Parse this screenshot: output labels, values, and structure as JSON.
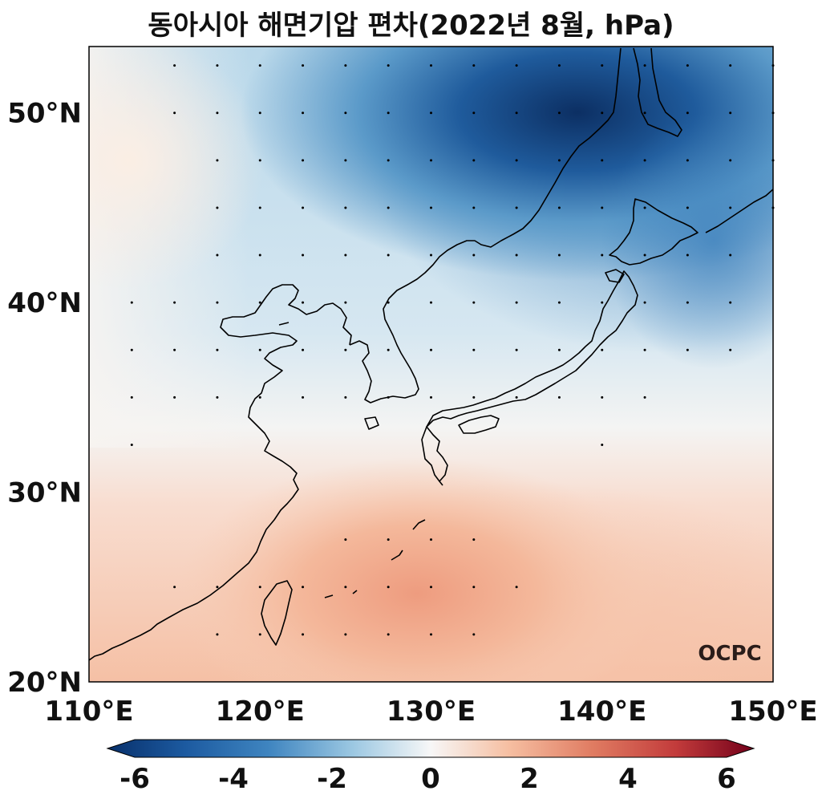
{
  "title": "동아시아 해면기압 편차(2022년 8월, hPa)",
  "map": {
    "lon_range": [
      110,
      150
    ],
    "lat_range": [
      20,
      53.5
    ],
    "x_ticks": [
      {
        "value": 110,
        "label": "110°E"
      },
      {
        "value": 120,
        "label": "120°E"
      },
      {
        "value": 130,
        "label": "130°E"
      },
      {
        "value": 140,
        "label": "140°E"
      },
      {
        "value": 150,
        "label": "150°E"
      }
    ],
    "y_ticks": [
      {
        "value": 20,
        "label": "20°N"
      },
      {
        "value": 30,
        "label": "30°N"
      },
      {
        "value": 40,
        "label": "40°N"
      },
      {
        "value": 50,
        "label": "50°N"
      }
    ],
    "colormap": "RdBu_r",
    "variable": "sea level pressure anomaly",
    "units": "hPa",
    "features": [
      "Korean Peninsula",
      "Japan",
      "Taiwan",
      "Sakhalin",
      "East China coast"
    ],
    "pattern": {
      "negative_center": {
        "lon": 137,
        "lat": 51,
        "value": -6.5
      },
      "positive_center": {
        "lon": 129,
        "lat": 24.5,
        "value": 2.5
      }
    },
    "significance_dots": true
  },
  "colorbar": {
    "min": -6,
    "max": 6,
    "ticks": [
      "-6",
      "-4",
      "-2",
      "0",
      "2",
      "4",
      "6"
    ],
    "extend": "both"
  },
  "logo": {
    "text": "OCPC"
  }
}
